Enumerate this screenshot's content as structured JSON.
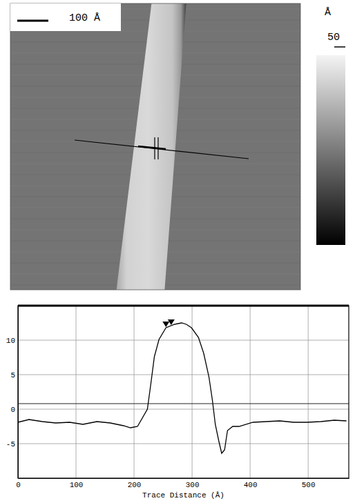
{
  "image": {
    "scale_bar_label": "100 Å",
    "colorbar": {
      "unit": "Å",
      "range": [
        0,
        50
      ],
      "ticks": [
        50
      ]
    }
  },
  "chart_data": {
    "type": "line",
    "xlabel": "Trace Distance (Å)",
    "x": [
      0,
      19,
      42,
      65,
      89,
      112,
      136,
      159,
      182,
      194,
      206,
      223,
      229,
      235,
      243,
      255,
      270,
      282,
      290,
      299,
      311,
      320,
      329,
      335,
      340,
      346,
      351,
      356,
      361,
      370,
      381,
      405,
      428,
      451,
      475,
      498,
      522,
      545,
      566
    ],
    "values": [
      -1.9,
      -1.5,
      -1.8,
      -2.0,
      -1.9,
      -2.2,
      -1.8,
      -2.0,
      -2.4,
      -2.7,
      -2.5,
      0.0,
      3.7,
      7.6,
      10.1,
      11.8,
      12.3,
      12.5,
      12.3,
      11.8,
      10.4,
      8.1,
      4.7,
      1.3,
      -2.2,
      -4.6,
      -6.4,
      -5.9,
      -3.1,
      -2.5,
      -2.5,
      -1.9,
      -1.8,
      -1.7,
      -1.9,
      -1.9,
      -1.8,
      -1.6,
      -1.7
    ],
    "color": "#000000",
    "xlim": [
      0,
      570
    ],
    "ylim": [
      -10,
      15
    ],
    "xticks": [
      0,
      100,
      200,
      300,
      400,
      500
    ],
    "yticks": [
      -5,
      0,
      5,
      10
    ],
    "grid": true,
    "reference_lines": [
      0.8
    ],
    "cursors": [
      {
        "x": 255,
        "y": 11.8
      },
      {
        "x": 264,
        "y": 12.1
      }
    ]
  }
}
